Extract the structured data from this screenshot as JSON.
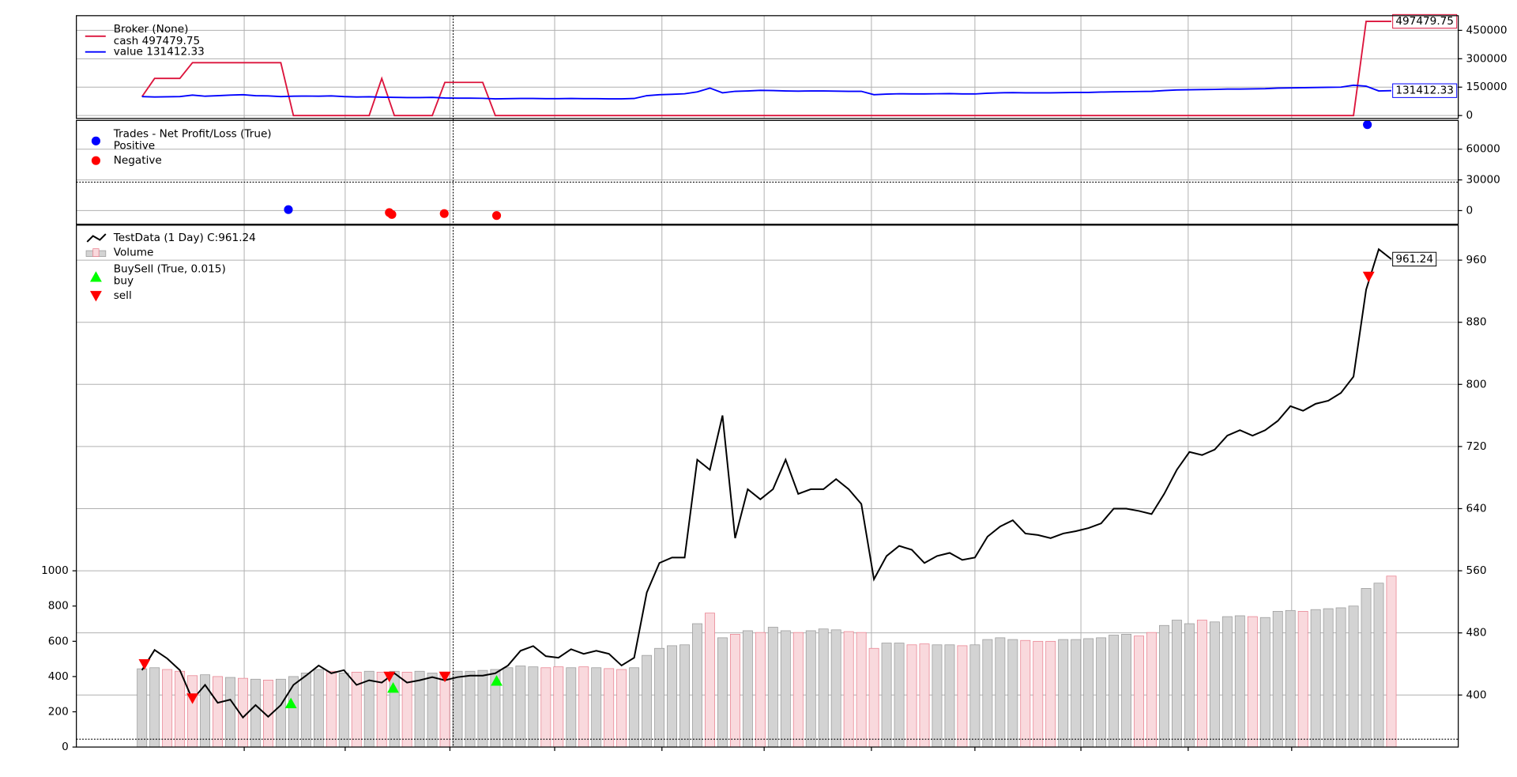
{
  "chart_data": [
    {
      "type": "line",
      "legend_title": "Broker (None)",
      "xlim": [
        -5.2,
        104.3
      ],
      "xticks": [
        8.1,
        16.1,
        24.4,
        32.7,
        41.2,
        49.3,
        57.8,
        66.0,
        74.4,
        82.9,
        91.1
      ],
      "ylim": [
        -15500,
        527600
      ],
      "yticks": [
        0,
        150000,
        300000,
        450000
      ],
      "grid": true,
      "series": [
        {
          "name": "cash 497479.75",
          "color": "#dc143c",
          "values": [
            100000,
            196000,
            196000,
            196000,
            279000,
            279000,
            279000,
            279000,
            279000,
            279000,
            279000,
            279000,
            0,
            0,
            0,
            0,
            0,
            0,
            0,
            196000,
            0,
            0,
            0,
            0,
            175000,
            175000,
            175000,
            175000,
            0,
            0,
            0,
            0,
            0,
            0,
            0,
            0,
            0,
            0,
            0,
            0,
            0,
            0,
            0,
            0,
            0,
            0,
            0,
            0,
            0,
            0,
            0,
            0,
            0,
            0,
            0,
            0,
            0,
            0,
            0,
            0,
            0,
            0,
            0,
            0,
            0,
            0,
            0,
            0,
            0,
            0,
            0,
            0,
            0,
            0,
            0,
            0,
            0,
            0,
            0,
            0,
            0,
            0,
            0,
            0,
            0,
            0,
            0,
            0,
            0,
            0,
            0,
            0,
            0,
            0,
            0,
            0,
            0,
            497479.75,
            497479.75,
            497479.75
          ]
        },
        {
          "name": "value 131412.33",
          "color": "#0000ff",
          "values": [
            100000,
            98000,
            99000,
            100000,
            108000,
            102000,
            105000,
            108000,
            110000,
            105000,
            104000,
            100000,
            102000,
            103000,
            102000,
            104000,
            100000,
            98000,
            99000,
            97000,
            96000,
            95000,
            95000,
            96000,
            93000,
            92000,
            92000,
            91000,
            88000,
            89000,
            90000,
            90000,
            89000,
            89000,
            90000,
            89000,
            89000,
            88000,
            88000,
            90000,
            105000,
            110000,
            112000,
            115000,
            125000,
            145000,
            120000,
            128000,
            130000,
            133000,
            132000,
            130000,
            129000,
            130000,
            130000,
            129000,
            128000,
            128000,
            110000,
            113000,
            115000,
            114000,
            114000,
            115000,
            116000,
            114000,
            114000,
            118000,
            120000,
            121000,
            120000,
            120000,
            120000,
            121000,
            122000,
            122000,
            124000,
            125000,
            126000,
            127000,
            128000,
            132000,
            135000,
            136000,
            137000,
            138000,
            140000,
            140000,
            141000,
            142000,
            145000,
            146000,
            147000,
            148000,
            149000,
            150000,
            160000,
            155000,
            130000,
            131412.33
          ]
        }
      ]
    },
    {
      "type": "scatter",
      "title": "Trades - Net Profit/Loss (True)",
      "xlim": [
        -5.2,
        104.3
      ],
      "xticks": [
        8.1,
        16.1,
        24.4,
        32.7,
        41.2,
        49.3,
        57.8,
        66.0,
        74.4,
        82.9,
        91.1
      ],
      "ylim": [
        -13300,
        88100
      ],
      "yticks": [
        0,
        30000,
        60000
      ],
      "grid": true,
      "series": [
        {
          "name": "Positive",
          "color": "#0000ff",
          "x": [
            11.6,
            97.1
          ],
          "values": [
            1000,
            84000
          ]
        },
        {
          "name": "Negative",
          "color": "#ff0000",
          "x": [
            19.6,
            19.8,
            23.95,
            28.1
          ],
          "values": [
            -1900,
            -3800,
            -2900,
            -4800
          ]
        }
      ]
    },
    {
      "type": "price",
      "xlim": [
        -5.2,
        104.3
      ],
      "xticks": [
        8.1,
        16.1,
        24.4,
        32.7,
        41.2,
        49.3,
        57.8,
        66.0,
        74.4,
        82.9,
        91.1
      ],
      "ylim": [
        333,
        1005
      ],
      "yticks": [
        400,
        480,
        560,
        640,
        720,
        800,
        880,
        960
      ],
      "grid": true,
      "series": [
        {
          "name": "TestData (1 Day) C:961.24",
          "color": "#000000",
          "values": [
            432,
            458,
            447,
            432,
            394,
            413,
            390,
            394,
            371,
            387,
            372,
            387,
            413,
            425,
            438,
            428,
            432,
            413,
            419,
            416,
            428,
            416,
            419,
            423,
            419,
            423,
            425,
            425,
            428,
            438,
            457,
            463,
            450,
            448,
            459,
            453,
            457,
            453,
            438,
            448,
            532,
            570,
            577,
            577,
            703,
            690,
            760,
            602,
            665,
            652,
            665,
            703,
            659,
            665,
            665,
            678,
            665,
            646,
            549,
            579,
            592,
            587,
            570,
            579,
            583,
            574,
            577,
            604,
            617,
            625,
            608,
            606,
            602,
            608,
            611,
            615,
            621,
            640,
            640,
            637,
            633,
            659,
            690,
            713,
            709,
            716,
            734,
            741,
            734,
            741,
            753,
            772,
            766,
            775,
            779,
            789,
            810,
            922,
            974,
            961.24
          ]
        }
      ],
      "volume": {
        "name": "Volume",
        "up_color": "#d3d3d3",
        "down_color": "#e8808f",
        "ylim": [
          0,
          2961
        ],
        "yticks": [
          0,
          200,
          400,
          600,
          800,
          1000
        ],
        "values": [
          444,
          450,
          440,
          430,
          405,
          410,
          400,
          395,
          390,
          385,
          380,
          385,
          400,
          420,
          440,
          430,
          420,
          425,
          430,
          425,
          430,
          425,
          430,
          420,
          425,
          430,
          430,
          435,
          440,
          450,
          460,
          455,
          450,
          455,
          450,
          455,
          450,
          445,
          440,
          450,
          520,
          560,
          575,
          580,
          700,
          760,
          620,
          640,
          660,
          650,
          680,
          660,
          650,
          660,
          670,
          665,
          655,
          650,
          560,
          590,
          590,
          580,
          585,
          580,
          580,
          575,
          580,
          610,
          620,
          610,
          605,
          600,
          600,
          610,
          610,
          615,
          620,
          635,
          640,
          630,
          650,
          690,
          720,
          700,
          720,
          710,
          740,
          745,
          740,
          735,
          770,
          775,
          770,
          780,
          785,
          790,
          800,
          900,
          930,
          970
        ]
      },
      "buysell": {
        "name": "BuySell (True, 0.015)",
        "buy": {
          "name": "buy",
          "color": "#00ff00",
          "x": [
            11.8,
            19.9,
            28.1
          ],
          "values": [
            389,
            409,
            418
          ]
        },
        "sell": {
          "name": "sell",
          "color": "#ff0000",
          "x": [
            0.2,
            4.0,
            19.6,
            24.0,
            97.2
          ],
          "values": [
            440,
            396,
            424,
            424,
            939
          ]
        }
      }
    }
  ]
}
